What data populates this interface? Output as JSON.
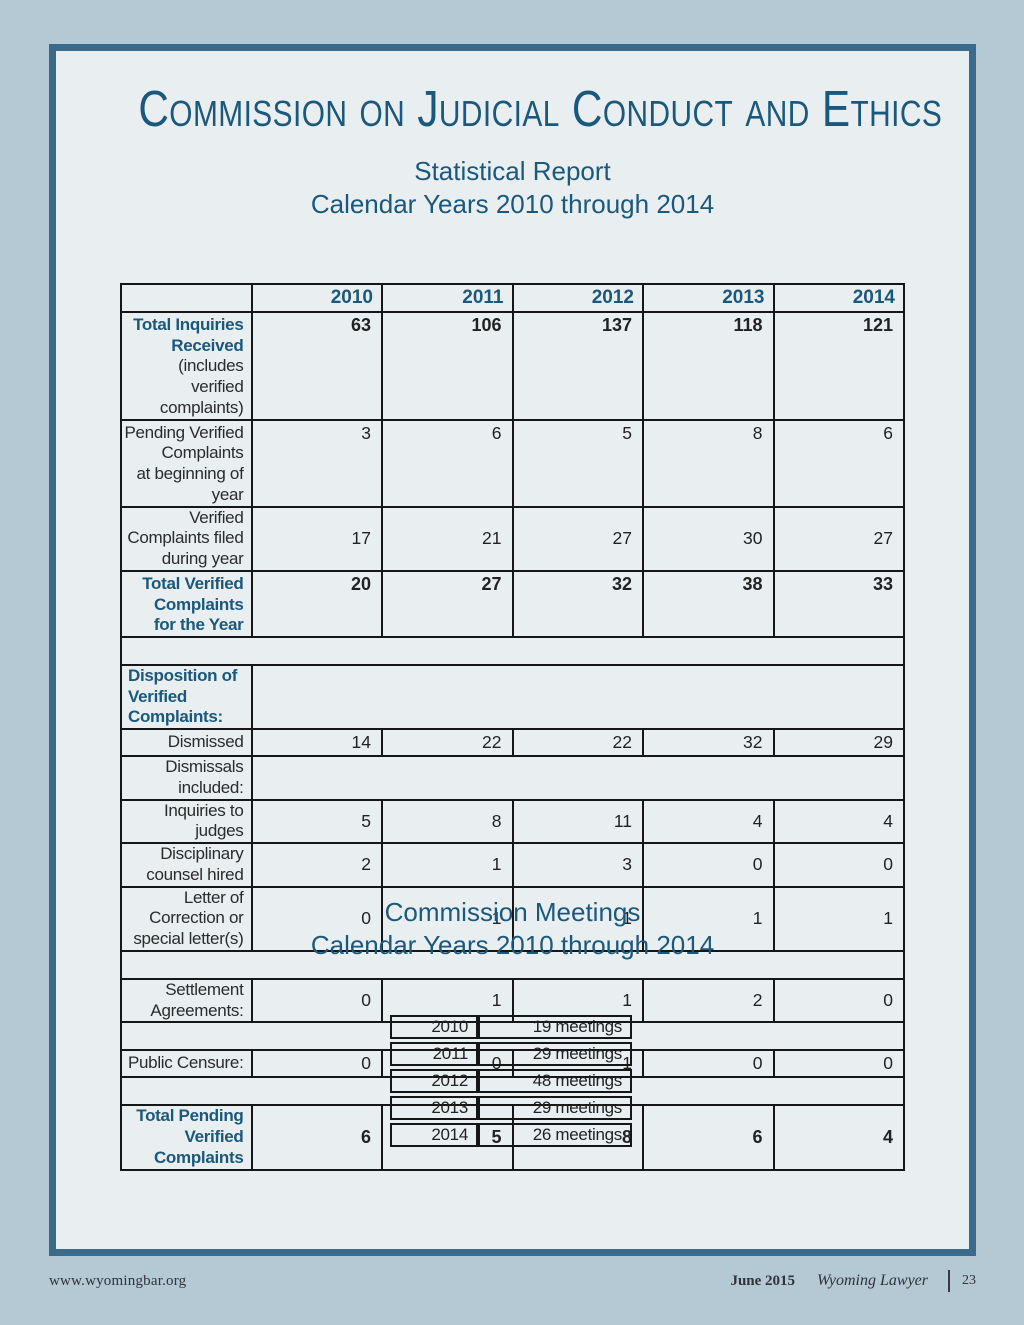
{
  "page": {
    "title": "Commission on Judicial Conduct and Ethics",
    "subtitle_line1": "Statistical Report",
    "subtitle_line2": "Calendar Years 2010 through 2014"
  },
  "colors": {
    "accent_teal": "#1b587d",
    "page_border": "#3a6b8b",
    "outer_background": "#b4c9d3",
    "page_background": "#e9eef1",
    "table_border": "#161616"
  },
  "stats_table": {
    "years": [
      "2010",
      "2011",
      "2012",
      "2013",
      "2014"
    ],
    "rows": [
      {
        "type": "data",
        "emphasis": true,
        "label": "Total Inquiries Received",
        "label2": "(includes verified complaints)",
        "label2_strong": false,
        "values": [
          63,
          106,
          137,
          118,
          121
        ]
      },
      {
        "type": "data",
        "label": "Pending Verified Complaints",
        "label2": "at beginning of year",
        "values": [
          3,
          6,
          5,
          8,
          6
        ]
      },
      {
        "type": "data",
        "label": "Verified Complaints filed during year",
        "values": [
          17,
          21,
          27,
          30,
          27
        ]
      },
      {
        "type": "data",
        "emphasis": true,
        "label": "Total Verified Complaints",
        "label2": "for the Year",
        "label2_strong": true,
        "values": [
          20,
          27,
          32,
          38,
          33
        ]
      },
      {
        "type": "spacer"
      },
      {
        "type": "section",
        "label": "Disposition of Verified Complaints:"
      },
      {
        "type": "data",
        "label": "Dismissed",
        "values": [
          14,
          22,
          22,
          32,
          29
        ]
      },
      {
        "type": "merged",
        "label": "Dismissals included:"
      },
      {
        "type": "data",
        "label": "Inquiries to judges",
        "values": [
          5,
          8,
          11,
          4,
          4
        ]
      },
      {
        "type": "data",
        "label": "Disciplinary counsel hired",
        "values": [
          2,
          1,
          3,
          0,
          0
        ]
      },
      {
        "type": "data",
        "label": "Letter of Correction or special letter(s)",
        "values": [
          0,
          1,
          1,
          1,
          1
        ]
      },
      {
        "type": "spacer"
      },
      {
        "type": "data",
        "label": "Settlement Agreements:",
        "values": [
          0,
          1,
          1,
          2,
          0
        ]
      },
      {
        "type": "spacer"
      },
      {
        "type": "data",
        "label": "Public Censure:",
        "values": [
          0,
          0,
          1,
          0,
          0
        ]
      },
      {
        "type": "spacer"
      },
      {
        "type": "data",
        "emphasis": true,
        "label": "Total Pending Verified Complaints",
        "values": [
          6,
          5,
          8,
          6,
          4
        ]
      }
    ]
  },
  "meetings": {
    "heading_line1": "Commission Meetings",
    "heading_line2": "Calendar Years 2010 through 2014",
    "rows": [
      {
        "year": "2010",
        "count": "19 meetings"
      },
      {
        "year": "2011",
        "count": "29 meetings"
      },
      {
        "year": "2012",
        "count": "48 meetings"
      },
      {
        "year": "2013",
        "count": "29 meetings"
      },
      {
        "year": "2014",
        "count": "26 meetings"
      }
    ]
  },
  "footer": {
    "website": "www.wyomingbar.org",
    "issue": "June 2015",
    "publication": "Wyoming Lawyer",
    "page_number": "23"
  }
}
